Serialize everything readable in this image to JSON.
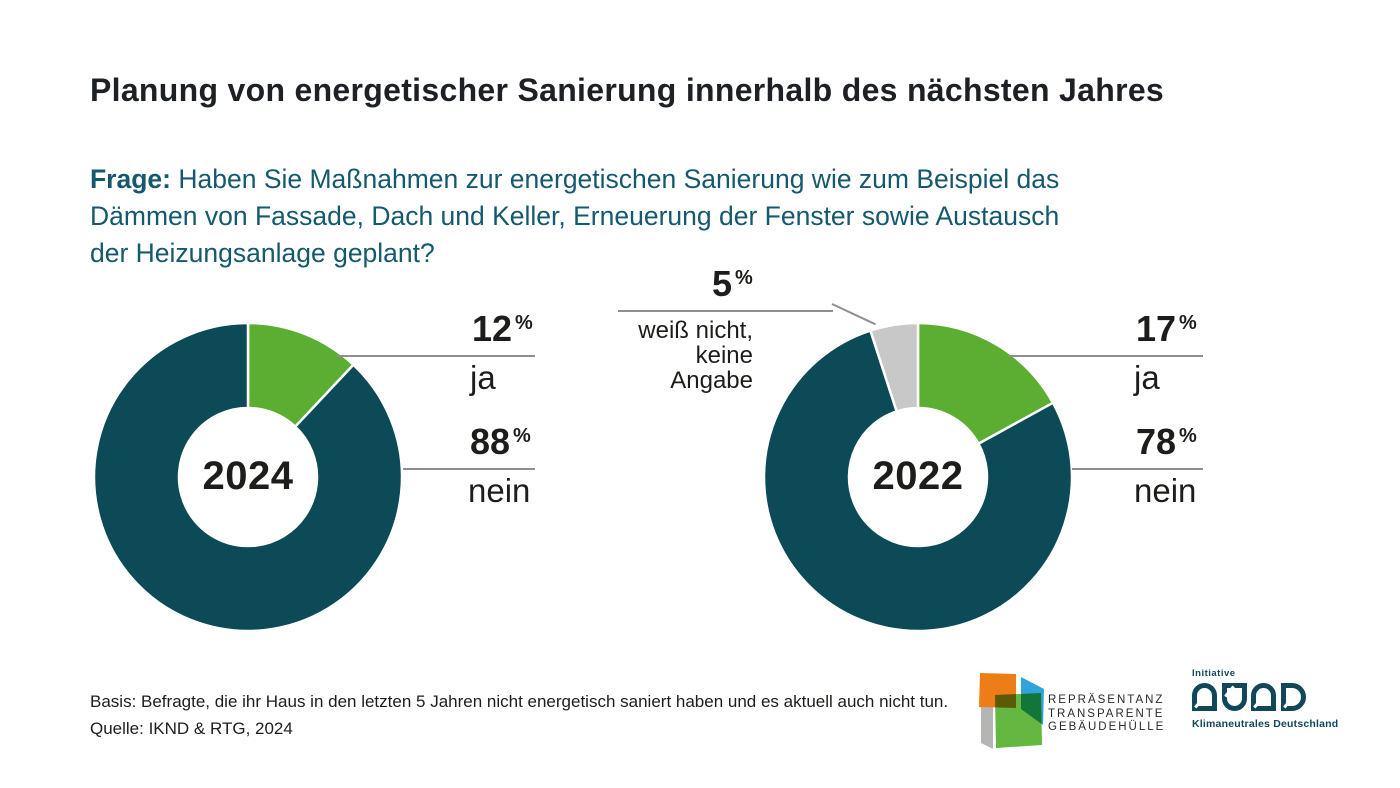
{
  "title": "Planung von energetischer Sanierung innerhalb des nächsten Jahres",
  "question": {
    "prefix": "Frage:",
    "line1_rest": " Haben Sie Maßnahmen zur energetischen Sanierung wie zum Beispiel das",
    "line2": "Dämmen von Fassade, Dach und Keller, Erneuerung der Fenster sowie Austausch",
    "line3": "der Heizungsanlage geplant?"
  },
  "labels": {
    "percent_sign": "%"
  },
  "chart_data": [
    {
      "type": "pie",
      "variant": "donut",
      "center_label": "2024",
      "start_angle_deg": 0,
      "direction": "clockwise",
      "slices": [
        {
          "label": "ja",
          "value": 12,
          "color": "#5bae32"
        },
        {
          "label": "nein",
          "value": 88,
          "color": "#0c4a57"
        }
      ]
    },
    {
      "type": "pie",
      "variant": "donut",
      "center_label": "2022",
      "start_angle_deg": 0,
      "direction": "clockwise",
      "slices": [
        {
          "label": "ja",
          "value": 17,
          "color": "#5bae32"
        },
        {
          "label": "nein",
          "value": 78,
          "color": "#0c4a57"
        },
        {
          "label": "weiß nicht, keine Angabe",
          "label_lines": [
            "weiß nicht,",
            "keine Angabe"
          ],
          "value": 5,
          "color": "#c8c8c8"
        }
      ]
    }
  ],
  "footer": {
    "basis": "Basis: Befragte, die ihr Haus in den letzten 5 Jahren nicht energetisch saniert haben und es aktuell auch nicht tun.",
    "quelle": "Quelle: IKND & RTG, 2024"
  },
  "logos": {
    "rtg": {
      "line1": "REPRÄSENTANZ",
      "line2": "TRANSPARENTE",
      "line3": "GEBÄUDEHÜLLE"
    },
    "iknd": {
      "top": "Initiative",
      "bottom": "Klimaneutrales Deutschland"
    }
  },
  "colors": {
    "teal": "#0c4a57",
    "green": "#5bae32",
    "gray": "#c8c8c8",
    "question_text": "#15596f",
    "callout_line": "#8f8f8f"
  }
}
